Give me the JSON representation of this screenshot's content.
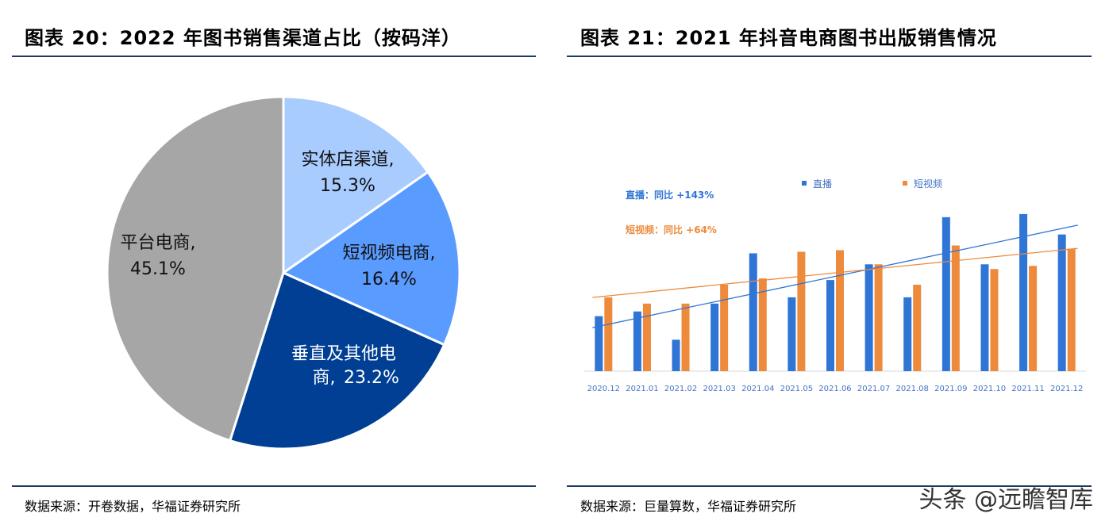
{
  "left": {
    "title": "图表 20：2022 年图书销售渠道占比（按码洋）",
    "source": "数据来源：开卷数据，华福证券研究所"
  },
  "right": {
    "title": "图表 21：2021 年抖音电商图书出版销售情况",
    "source": "数据来源：巨量算数，华福证券研究所"
  },
  "watermark": "头条 @远瞻智库",
  "colors": {
    "rule": "#1f3864",
    "pie_store": "#a9ccff",
    "pie_shortvideo": "#5a9bff",
    "pie_vertical": "#003f94",
    "pie_platform": "#a6a6a6",
    "bar_live": "#2e75d6",
    "bar_short": "#ed8a3c"
  },
  "chart_data": [
    {
      "type": "pie",
      "slices": [
        {
          "label": "实体店渠道,",
          "pct_text": "15.3%",
          "value": 15.3,
          "color": "#a9ccff"
        },
        {
          "label": "短视频电商,",
          "pct_text": "16.4%",
          "value": 16.4,
          "color": "#5a9bff"
        },
        {
          "label": "垂直及其他电",
          "label2": "商,",
          "pct_text": "23.2%",
          "value": 23.2,
          "color": "#003f94"
        },
        {
          "label": "平台电商,",
          "pct_text": "45.1%",
          "value": 45.1,
          "color": "#a6a6a6"
        }
      ]
    },
    {
      "type": "bar",
      "categories": [
        "2020.12",
        "2021.01",
        "2021.02",
        "2021.03",
        "2021.04",
        "2021.05",
        "2021.06",
        "2021.07",
        "2021.08",
        "2021.09",
        "2021.10",
        "2021.11",
        "2021.12"
      ],
      "series": [
        {
          "name": "直播",
          "color": "#2e75d6",
          "values": [
            35,
            38,
            20,
            43,
            75,
            47,
            58,
            68,
            47,
            98,
            68,
            100,
            87
          ]
        },
        {
          "name": "短视频",
          "color": "#ed8a3c",
          "values": [
            47,
            43,
            43,
            55,
            59,
            76,
            77,
            68,
            55,
            80,
            65,
            67,
            78
          ]
        }
      ],
      "trend_labels": [
        {
          "text": "直播：同比 +143%",
          "color": "#2e75d6"
        },
        {
          "text": "短视频：同比 +64%",
          "color": "#ed8a3c"
        }
      ],
      "legend_position": "top",
      "ylim": [
        0,
        105
      ],
      "grid": false
    }
  ]
}
